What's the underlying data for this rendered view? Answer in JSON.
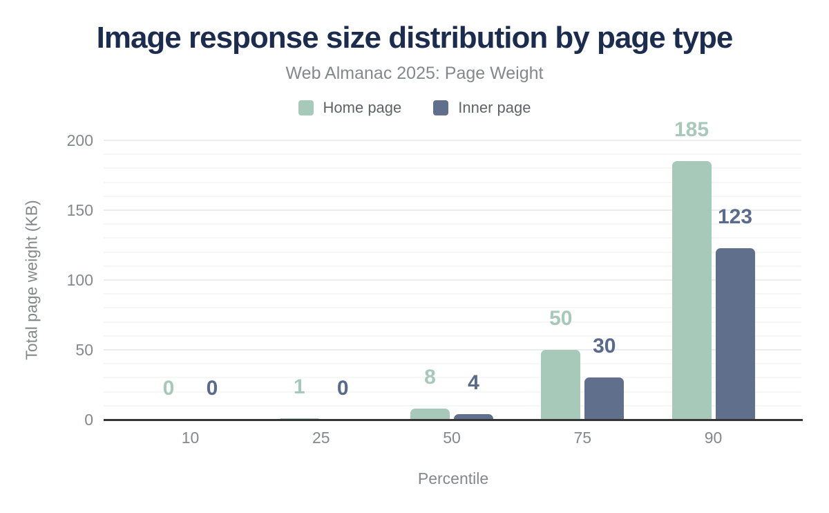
{
  "header": {
    "title": "Image response size distribution by page type",
    "subtitle": "Web Almanac 2025: Page Weight"
  },
  "colors": {
    "title": "#1c2c4f",
    "home_page_bar": "#a6c9ba",
    "inner_page_bar": "#5f6f8c",
    "home_page_label": "#a6c9ba",
    "inner_page_label": "#5a6a8b",
    "axis_text": "#85888b",
    "axis_line": "#343434"
  },
  "chart_data": {
    "type": "bar",
    "title": "Image response size distribution by page type",
    "subtitle": "Web Almanac 2025: Page Weight",
    "categories": [
      "10",
      "25",
      "50",
      "75",
      "90"
    ],
    "series": [
      {
        "name": "Home page",
        "color": "#a6c9ba",
        "label_color": "#a6c9ba",
        "values": [
          0,
          1,
          8,
          50,
          185
        ]
      },
      {
        "name": "Inner page",
        "color": "#5f6f8c",
        "label_color": "#5a6a8b",
        "values": [
          0,
          0,
          4,
          30,
          123
        ]
      }
    ],
    "xlabel": "Percentile",
    "ylabel": "Total page weight (KB)",
    "ylim": [
      0,
      200
    ],
    "yticks": [
      0,
      50,
      100,
      150,
      200
    ],
    "grid": {
      "on": true,
      "minor_step": 10,
      "major_step": 50
    },
    "legend_position": "top",
    "data_labels": true
  }
}
